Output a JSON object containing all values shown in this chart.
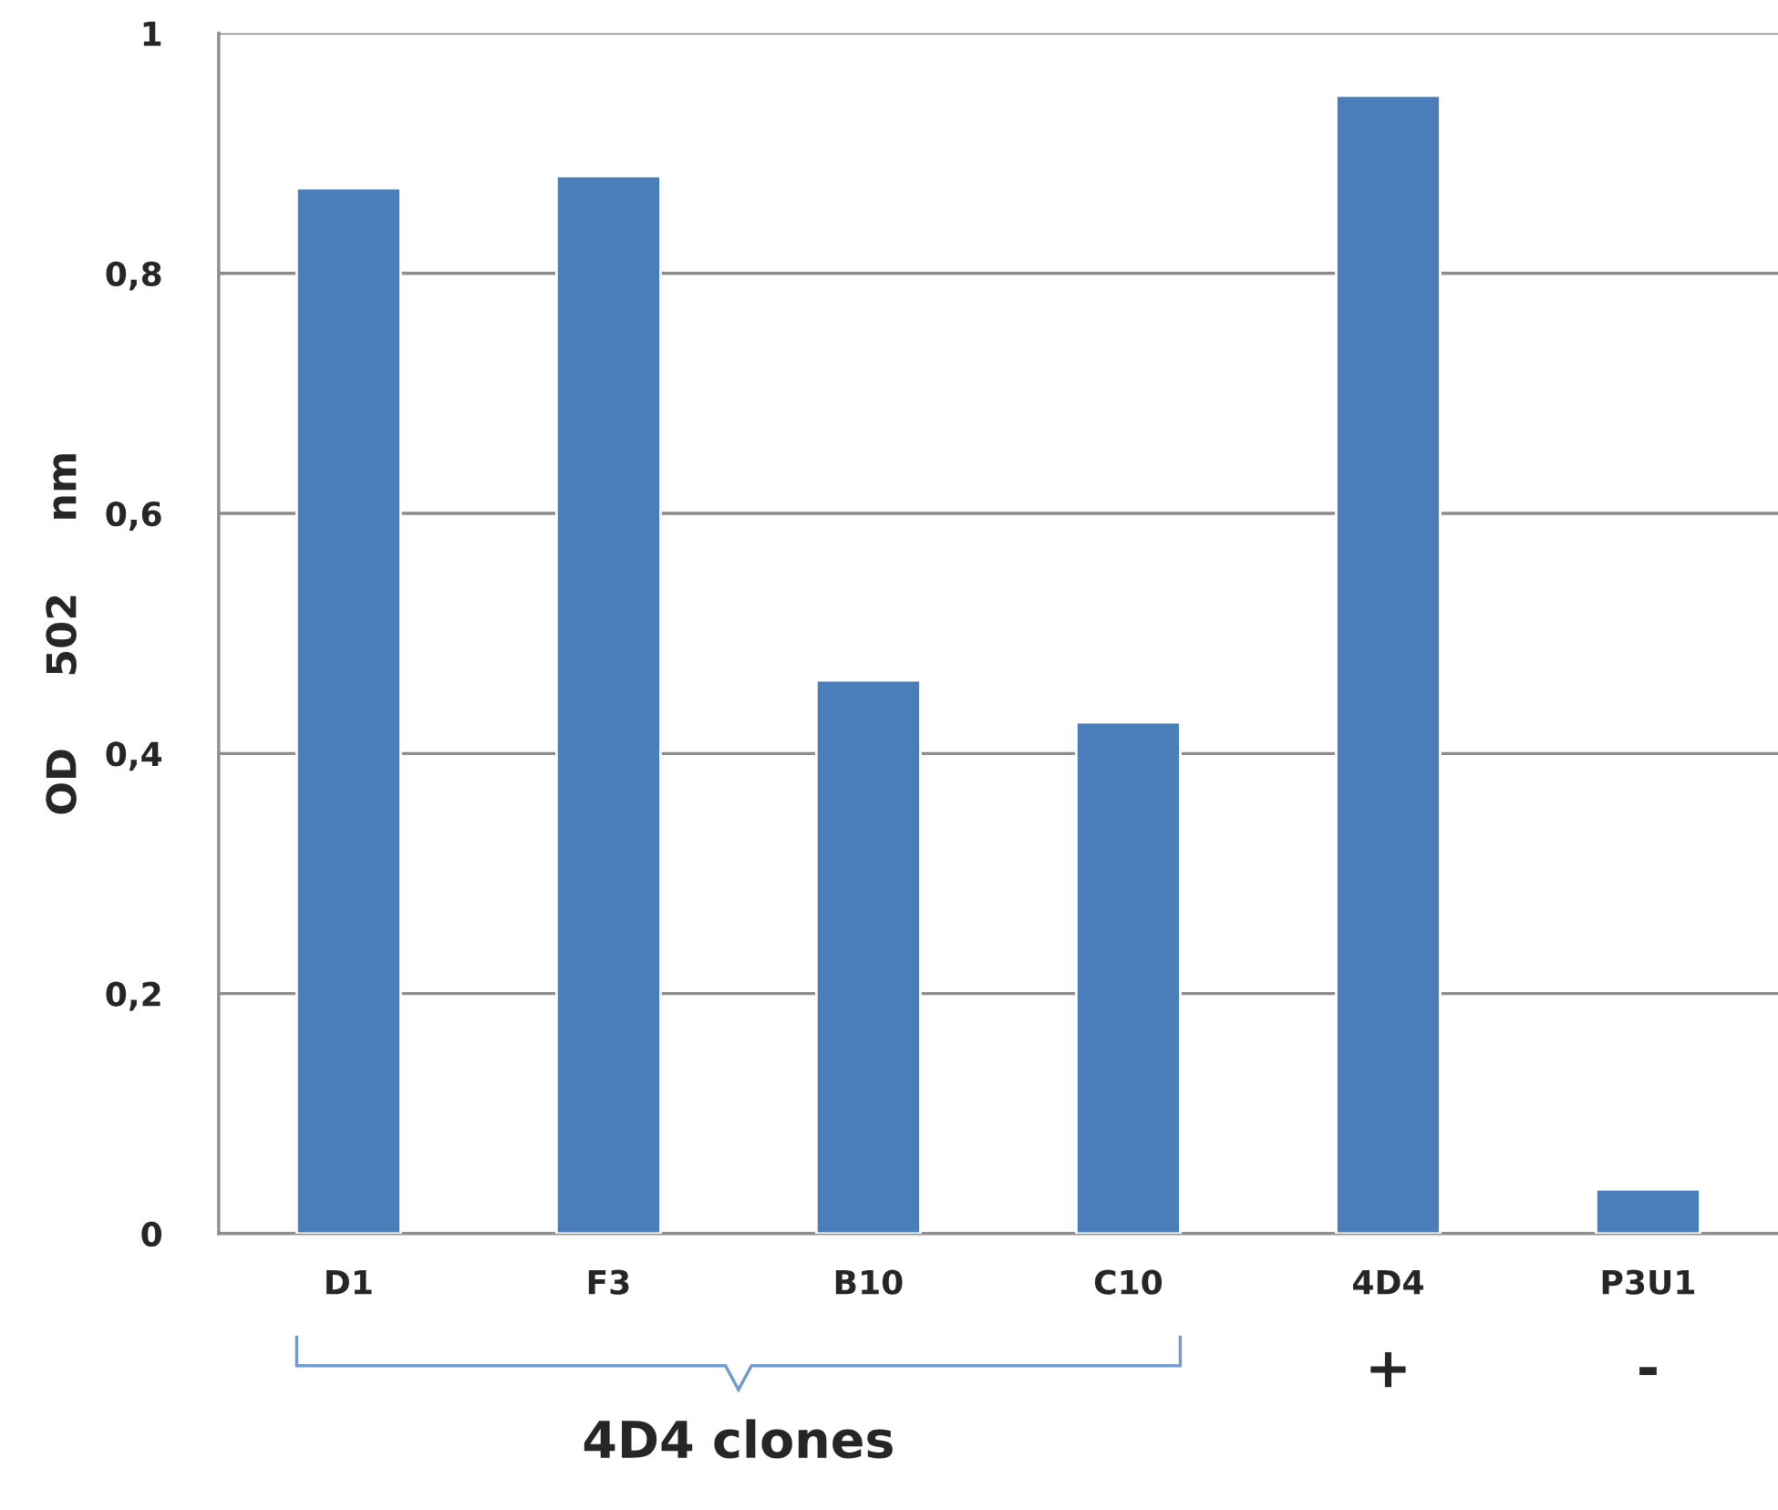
{
  "chart_data": {
    "type": "bar",
    "ylabel": "OD     502     nm",
    "categories": [
      "D1",
      "F3",
      "B10",
      "C10",
      "4D4",
      "P3U1"
    ],
    "values": [
      0.871,
      0.881,
      0.461,
      0.426,
      0.948,
      0.037
    ],
    "color": "#4a7ebb",
    "ylim": [
      0,
      1
    ],
    "yticks": [
      0,
      {
        "value": 0.2,
        "label": "0,2"
      },
      {
        "value": 0.4,
        "label": "0,4"
      },
      {
        "value": 0.6,
        "label": "0,6"
      },
      {
        "value": 0.8,
        "label": "0,8"
      },
      1
    ],
    "grid": "y",
    "annotations": [
      "4D4 clones",
      "+",
      "-"
    ]
  }
}
